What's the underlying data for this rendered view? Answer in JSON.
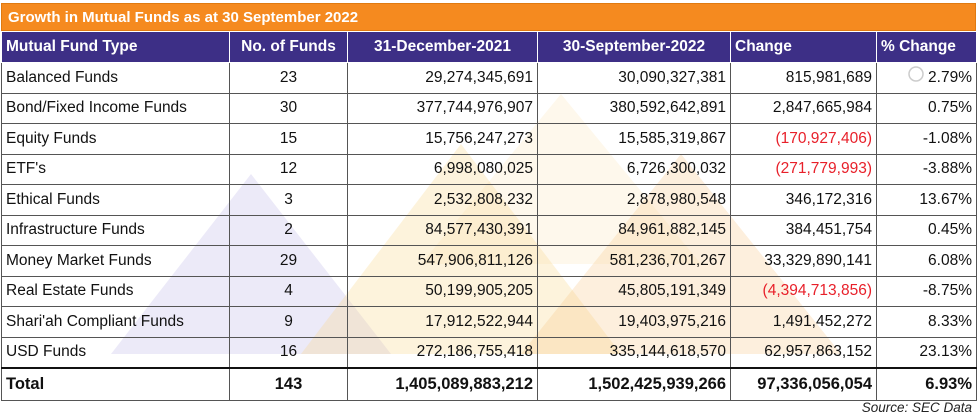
{
  "title": "Growth in Mutual Funds as at 30 September 2022",
  "headers": [
    "Mutual Fund Type",
    "No. of Funds",
    "31-December-2021",
    "30-September-2022",
    "Change",
    "% Change"
  ],
  "rows": [
    {
      "type": "Balanced Funds",
      "count": "23",
      "dec2021": "29,274,345,691",
      "sep2022": "30,090,327,381",
      "change": "815,981,689",
      "pct": "2.79%"
    },
    {
      "type": "Bond/Fixed Income Funds",
      "count": "30",
      "dec2021": "377,744,976,907",
      "sep2022": "380,592,642,891",
      "change": "2,847,665,984",
      "pct": "0.75%"
    },
    {
      "type": "Equity Funds",
      "count": "15",
      "dec2021": "15,756,247,273",
      "sep2022": "15,585,319,867",
      "change": "(170,927,406)",
      "pct": "-1.08%"
    },
    {
      "type": "ETF's",
      "count": "12",
      "dec2021": "6,998,080,025",
      "sep2022": "6,726,300,032",
      "change": "(271,779,993)",
      "pct": "-3.88%"
    },
    {
      "type": "Ethical Funds",
      "count": "3",
      "dec2021": "2,532,808,232",
      "sep2022": "2,878,980,548",
      "change": "346,172,316",
      "pct": "13.67%"
    },
    {
      "type": "Infrastructure Funds",
      "count": "2",
      "dec2021": "84,577,430,391",
      "sep2022": "84,961,882,145",
      "change": "384,451,754",
      "pct": "0.45%"
    },
    {
      "type": "Money Market Funds",
      "count": "29",
      "dec2021": "547,906,811,126",
      "sep2022": "581,236,701,267",
      "change": "33,329,890,141",
      "pct": "6.08%"
    },
    {
      "type": "Real Estate Funds",
      "count": "4",
      "dec2021": "50,199,905,205",
      "sep2022": "45,805,191,349",
      "change": "(4,394,713,856)",
      "pct": "-8.75%"
    },
    {
      "type": "Shari'ah Compliant Funds",
      "count": "9",
      "dec2021": "17,912,522,944",
      "sep2022": "19,403,975,216",
      "change": "1,491,452,272",
      "pct": "8.33%"
    },
    {
      "type": "USD Funds",
      "count": "16",
      "dec2021": "272,186,755,418",
      "sep2022": "335,144,618,570",
      "change": "62,957,863,152",
      "pct": "23.13%"
    }
  ],
  "total": {
    "type": "Total",
    "count": "143",
    "dec2021": "1,405,089,883,212",
    "sep2022": "1,502,425,939,266",
    "change": "97,336,056,054",
    "pct": "6.93%"
  },
  "source": "Source: SEC Data",
  "colors": {
    "title_bg": "#f58a1f",
    "header_bg": "#3d2f86",
    "negative": "#e8202a"
  }
}
